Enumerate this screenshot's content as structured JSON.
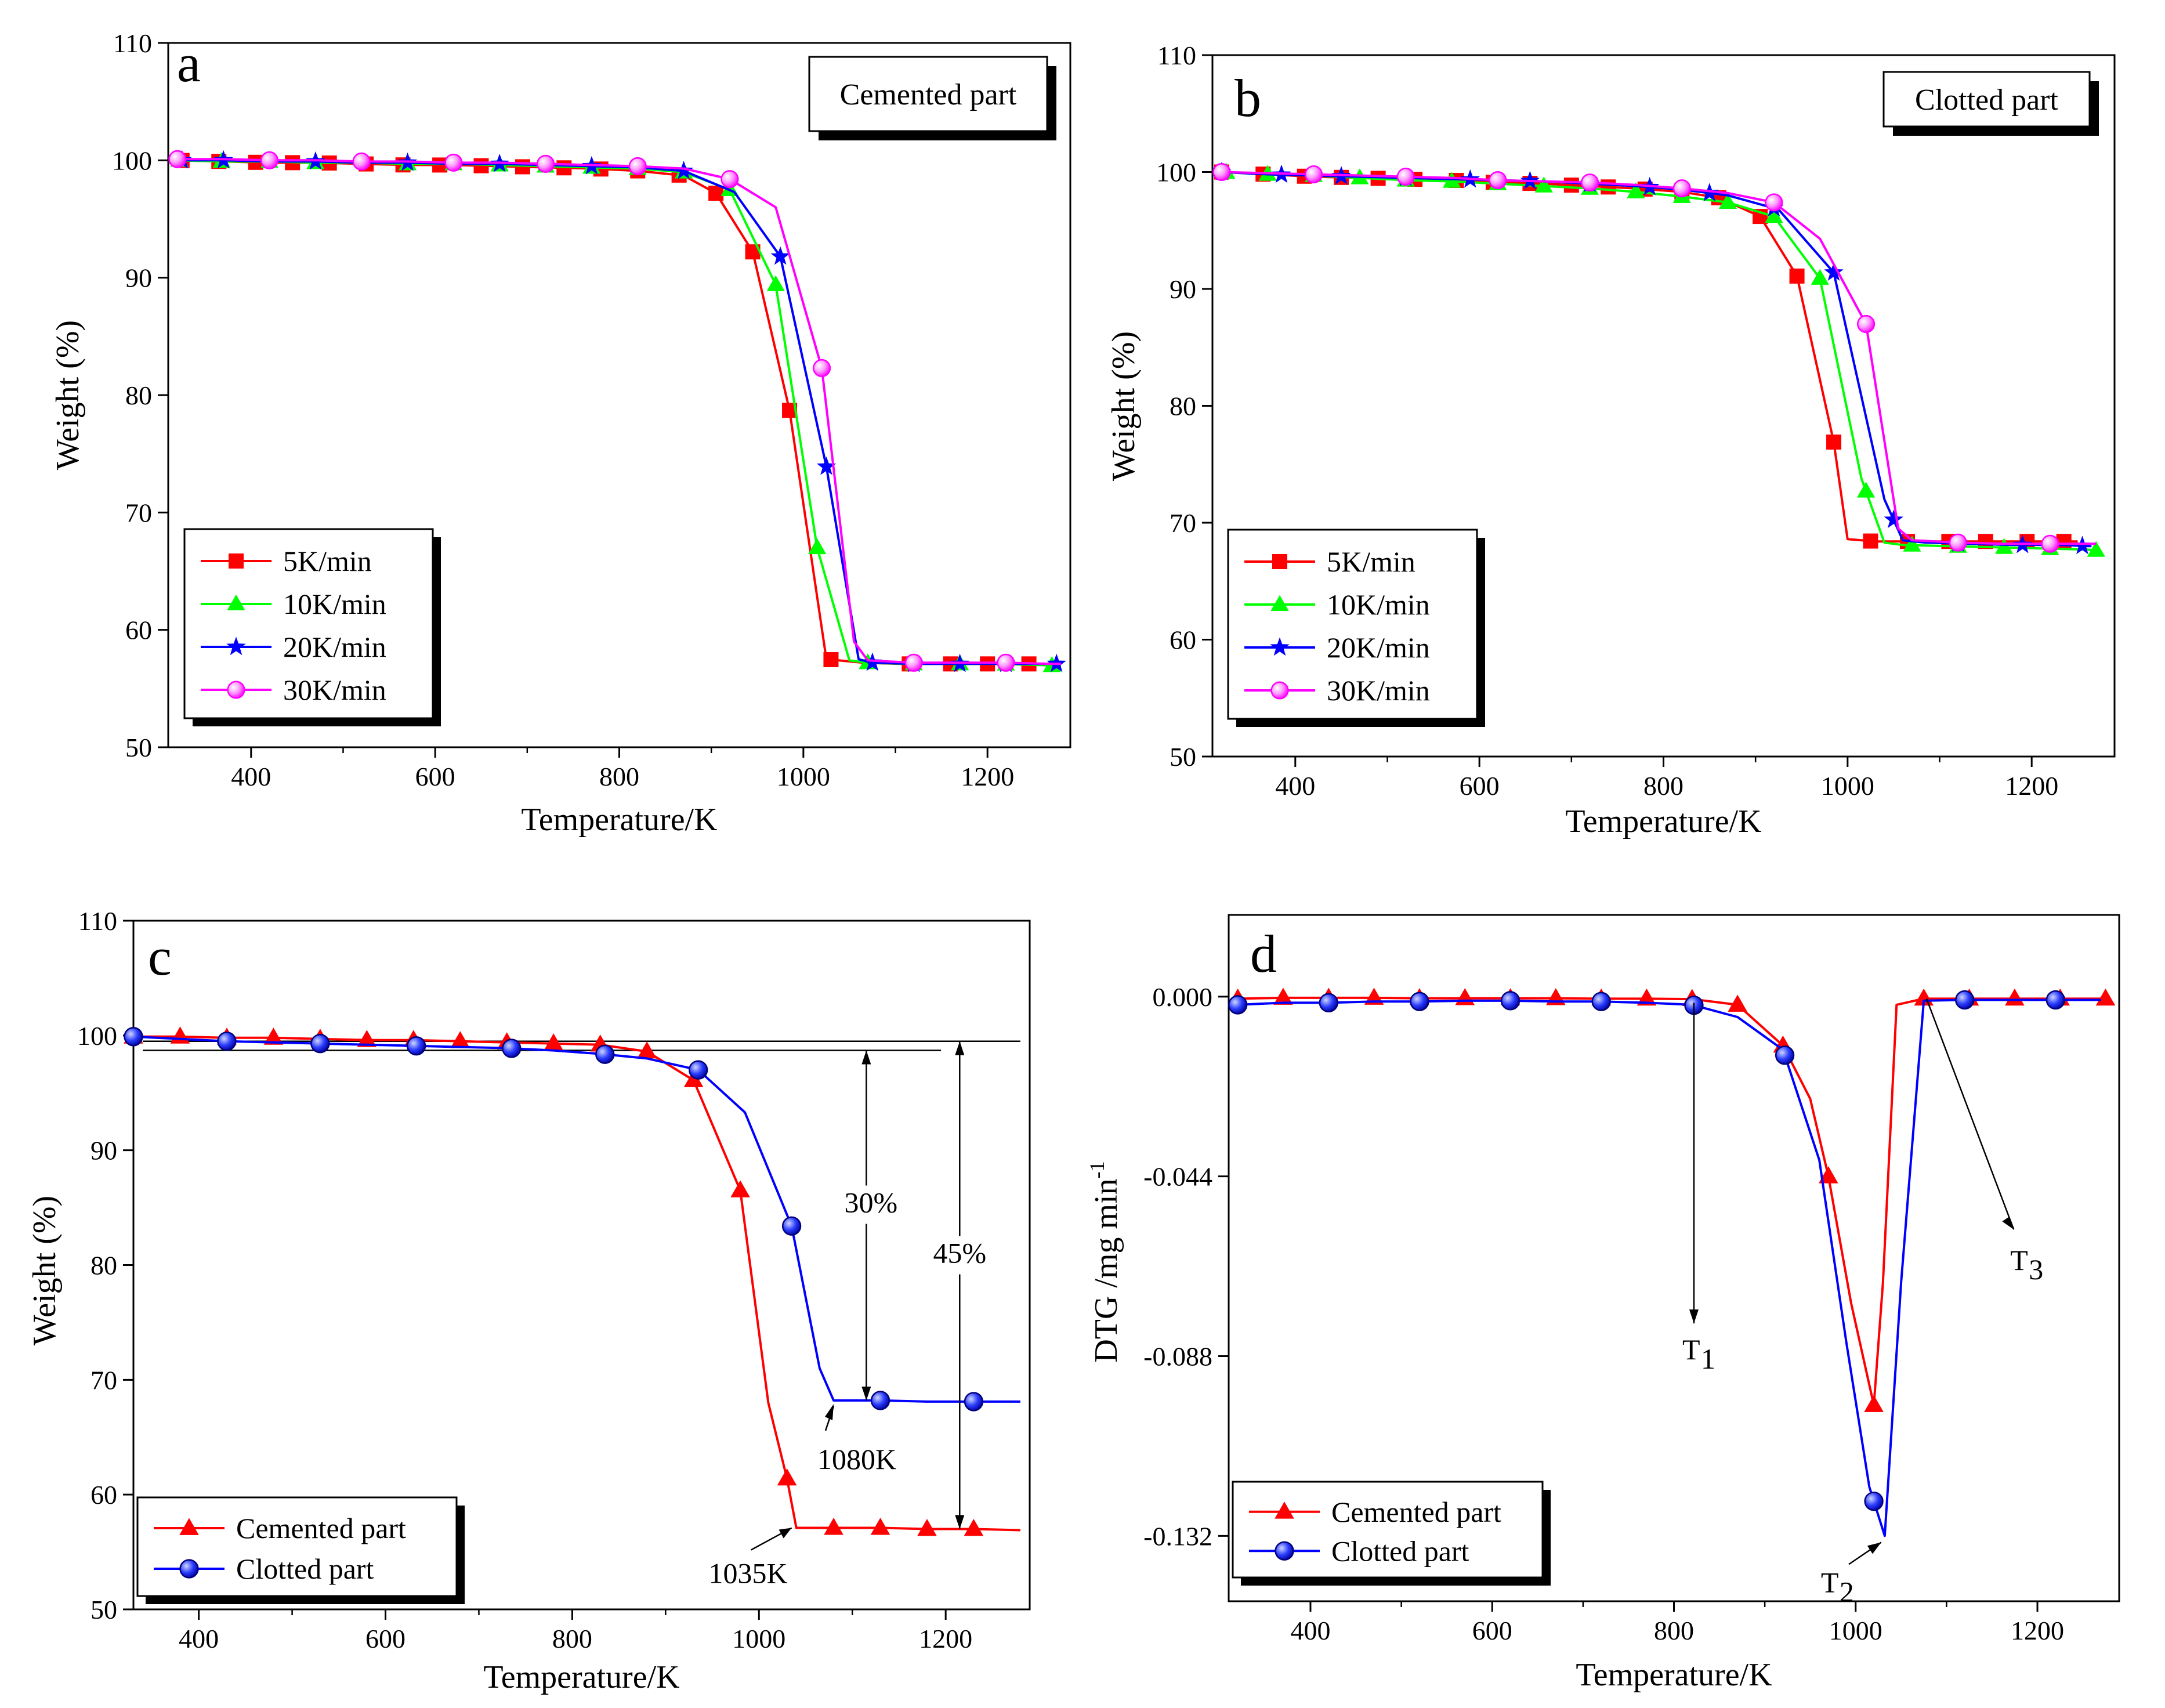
{
  "figure": {
    "colors": {
      "red": "#ff0000",
      "green": "#00ff00",
      "blue": "#0000ff",
      "magenta": "#ff00ff",
      "black": "#000000"
    },
    "icons": {
      "square": "square-marker-icon",
      "triangle": "triangle-marker-icon",
      "star": "star-marker-icon",
      "circle": "circle-marker-icon"
    }
  },
  "chart_data": [
    {
      "panel": "a",
      "type": "line",
      "title": "",
      "box_label": "Cemented part",
      "xlabel": "Temperature/K",
      "ylabel": "Weight  (%)",
      "xlim": [
        310,
        1290
      ],
      "ylim": [
        50,
        110
      ],
      "xticks": [
        400,
        600,
        800,
        1000,
        1200
      ],
      "yticks": [
        50,
        60,
        70,
        80,
        90,
        100,
        110
      ],
      "legend_position": "bottom-left",
      "series": [
        {
          "name": "5K/min",
          "color": "#ff0000",
          "marker": "square",
          "x": [
            320,
            370,
            420,
            470,
            520,
            570,
            620,
            670,
            720,
            770,
            820,
            870,
            905,
            945,
            985,
            1025,
            1065,
            1105,
            1155,
            1205,
            1255,
            1280
          ],
          "y": [
            100,
            99.9,
            99.8,
            99.8,
            99.7,
            99.6,
            99.6,
            99.5,
            99.4,
            99.3,
            99.1,
            98.7,
            97.2,
            92.2,
            78.7,
            57.5,
            57.2,
            57.1,
            57.1,
            57.1,
            57.1,
            57.1
          ],
          "markers_x": [
            325,
            365,
            405,
            445,
            485,
            525,
            565,
            605,
            650,
            695,
            740,
            780,
            820,
            865,
            905,
            945,
            985,
            1030,
            1115,
            1160,
            1200,
            1245
          ]
        },
        {
          "name": "10K/min",
          "color": "#00ff00",
          "marker": "triangle",
          "x": [
            320,
            370,
            420,
            470,
            520,
            570,
            620,
            670,
            720,
            770,
            820,
            870,
            920,
            970,
            1015,
            1050,
            1070,
            1110,
            1160,
            1210,
            1260,
            1280
          ],
          "y": [
            100,
            99.9,
            99.9,
            99.8,
            99.8,
            99.7,
            99.7,
            99.6,
            99.5,
            99.4,
            99.3,
            99,
            97.5,
            89.4,
            67,
            57.4,
            57.2,
            57.1,
            57.1,
            57.1,
            57,
            56.9
          ],
          "markers_x": [
            322,
            368,
            420,
            470,
            570,
            620,
            670,
            720,
            770,
            820,
            870,
            920,
            970,
            1015,
            1070,
            1120,
            1170,
            1220,
            1270
          ]
        },
        {
          "name": "20K/min",
          "color": "#0000ff",
          "marker": "star",
          "x": [
            320,
            370,
            420,
            470,
            520,
            570,
            620,
            670,
            720,
            770,
            820,
            870,
            925,
            975,
            1025,
            1060,
            1075,
            1120,
            1170,
            1220,
            1270,
            1280
          ],
          "y": [
            100,
            100,
            99.9,
            99.9,
            99.8,
            99.8,
            99.7,
            99.7,
            99.6,
            99.5,
            99.4,
            99.1,
            97.3,
            91.8,
            73.9,
            57.5,
            57.2,
            57.1,
            57.1,
            57.1,
            57.1,
            57.1
          ],
          "markers_x": [
            325,
            370,
            470,
            570,
            670,
            770,
            870,
            975,
            1025,
            1075,
            1120,
            1170,
            1220,
            1275
          ]
        },
        {
          "name": "30K/min",
          "color": "#ff00ff",
          "marker": "circle",
          "x": [
            320,
            370,
            420,
            470,
            520,
            570,
            620,
            670,
            720,
            770,
            820,
            870,
            920,
            970,
            1020,
            1055,
            1070,
            1120,
            1170,
            1220,
            1270,
            1280
          ],
          "y": [
            100.1,
            100.1,
            100,
            100,
            99.9,
            99.9,
            99.8,
            99.8,
            99.7,
            99.6,
            99.5,
            99.3,
            98.4,
            96,
            82.3,
            59,
            57.4,
            57.2,
            57.2,
            57.2,
            57.1,
            57.1
          ],
          "markers_x": [
            320,
            420,
            520,
            620,
            720,
            820,
            920,
            1020,
            1120,
            1220
          ]
        }
      ]
    },
    {
      "panel": "b",
      "type": "line",
      "title": "",
      "box_label": "Clotted part",
      "xlabel": "Temperature/K",
      "ylabel": "Weight  (%)",
      "xlim": [
        310,
        1290
      ],
      "ylim": [
        50,
        110
      ],
      "xticks": [
        400,
        600,
        800,
        1000,
        1200
      ],
      "yticks": [
        50,
        60,
        70,
        80,
        90,
        100,
        110
      ],
      "legend_position": "bottom-left",
      "series": [
        {
          "name": "5K/min",
          "color": "#ff0000",
          "marker": "square",
          "x": [
            320,
            370,
            420,
            470,
            520,
            570,
            620,
            670,
            720,
            770,
            820,
            860,
            905,
            945,
            985,
            1000,
            1030,
            1080,
            1130,
            1180,
            1230,
            1250
          ],
          "y": [
            100,
            99.8,
            99.6,
            99.5,
            99.4,
            99.3,
            99.1,
            99,
            98.8,
            98.6,
            98.3,
            97.8,
            96.2,
            91.1,
            76.9,
            68.6,
            68.4,
            68.4,
            68.4,
            68.4,
            68.4,
            68.4
          ],
          "markers_x": [
            320,
            365,
            410,
            450,
            490,
            530,
            575,
            615,
            655,
            700,
            740,
            780,
            820,
            860,
            905,
            945,
            985,
            1025,
            1065,
            1110,
            1150,
            1195,
            1235
          ]
        },
        {
          "name": "10K/min",
          "color": "#00ff00",
          "marker": "triangle",
          "x": [
            320,
            370,
            420,
            470,
            520,
            570,
            620,
            670,
            720,
            770,
            820,
            870,
            920,
            970,
            1015,
            1040,
            1060,
            1110,
            1160,
            1210,
            1260,
            1275
          ],
          "y": [
            100,
            99.8,
            99.7,
            99.5,
            99.3,
            99.2,
            99,
            98.8,
            98.6,
            98.3,
            97.9,
            97.4,
            96.2,
            90.9,
            73.8,
            68.3,
            68.1,
            68,
            67.9,
            67.8,
            67.7,
            67.6
          ],
          "markers_x": [
            325,
            370,
            420,
            470,
            520,
            570,
            620,
            670,
            720,
            770,
            820,
            870,
            920,
            970,
            1020,
            1070,
            1120,
            1170,
            1220,
            1270
          ]
        },
        {
          "name": "20K/min",
          "color": "#0000ff",
          "marker": "star",
          "x": [
            320,
            370,
            420,
            470,
            520,
            570,
            620,
            670,
            720,
            770,
            820,
            870,
            925,
            985,
            1040,
            1060,
            1085,
            1130,
            1180,
            1230,
            1260,
            1265
          ],
          "y": [
            100,
            99.8,
            99.7,
            99.6,
            99.5,
            99.4,
            99.3,
            99.2,
            99,
            98.8,
            98.5,
            98,
            96.8,
            91.4,
            72,
            68.5,
            68.3,
            68.2,
            68.1,
            68.1,
            68,
            68
          ],
          "markers_x": [
            320,
            385,
            450,
            520,
            590,
            655,
            720,
            785,
            850,
            920,
            985,
            1050,
            1120,
            1190,
            1255
          ]
        },
        {
          "name": "30K/min",
          "color": "#ff00ff",
          "marker": "circle",
          "x": [
            320,
            370,
            420,
            470,
            520,
            570,
            620,
            670,
            720,
            770,
            820,
            870,
            920,
            970,
            1020,
            1055,
            1070,
            1120,
            1170,
            1220,
            1260,
            1270
          ],
          "y": [
            100,
            99.9,
            99.8,
            99.7,
            99.6,
            99.5,
            99.3,
            99.2,
            99.1,
            98.9,
            98.6,
            98.2,
            97.4,
            94.3,
            87,
            69.5,
            68.5,
            68.3,
            68.2,
            68.2,
            68.2,
            68.2
          ],
          "markers_x": [
            320,
            420,
            520,
            620,
            720,
            820,
            920,
            1020,
            1120,
            1220
          ]
        }
      ]
    },
    {
      "panel": "c",
      "type": "line",
      "title": "",
      "xlabel": "Temperature/K",
      "ylabel": "Weight  (%)",
      "xlim": [
        330,
        1290
      ],
      "ylim": [
        50,
        110
      ],
      "xticks": [
        400,
        600,
        800,
        1000,
        1200
      ],
      "yticks": [
        50,
        60,
        70,
        80,
        90,
        100,
        110
      ],
      "legend_position": "bottom-left",
      "series": [
        {
          "name": "Cemented part",
          "color": "#ff0000",
          "marker": "triangle",
          "x": [
            330,
            380,
            430,
            480,
            530,
            580,
            630,
            680,
            730,
            780,
            830,
            880,
            930,
            980,
            1010,
            1030,
            1040,
            1080,
            1130,
            1180,
            1230,
            1280
          ],
          "y": [
            99.9,
            99.9,
            99.8,
            99.8,
            99.7,
            99.6,
            99.6,
            99.5,
            99.4,
            99.3,
            99.2,
            98.6,
            96.1,
            86.5,
            68,
            61.4,
            57.1,
            57.1,
            57.1,
            57,
            57,
            56.9
          ],
          "markers_x": [
            330,
            380,
            430,
            480,
            530,
            580,
            630,
            680,
            730,
            780,
            830,
            880,
            930,
            980,
            1030,
            1080,
            1130,
            1180,
            1230
          ]
        },
        {
          "name": "Clotted part",
          "color": "#0000ff",
          "marker": "circle",
          "x": [
            330,
            380,
            430,
            480,
            530,
            580,
            630,
            680,
            730,
            780,
            830,
            880,
            935,
            985,
            1035,
            1065,
            1080,
            1130,
            1180,
            1230,
            1280
          ],
          "y": [
            99.9,
            99.7,
            99.5,
            99.4,
            99.3,
            99.2,
            99.1,
            99,
            98.9,
            98.7,
            98.4,
            98,
            97,
            93.3,
            83.4,
            71,
            68.2,
            68.2,
            68.1,
            68.1,
            68.1
          ],
          "markers_x": [
            330,
            430,
            530,
            633,
            735,
            835,
            935,
            1035,
            1130,
            1230
          ]
        }
      ],
      "annotations": [
        {
          "label": "30%",
          "x": 1115,
          "from": 98.7,
          "to": 68.2
        },
        {
          "label": "45%",
          "x": 1215,
          "from": 99.5,
          "to": 57.0
        },
        {
          "label": "1080K",
          "x": 1080,
          "y": 68.2
        },
        {
          "label": "1035K",
          "x": 1035,
          "y": 57.1
        }
      ]
    },
    {
      "panel": "d",
      "type": "line",
      "title": "",
      "xlabel": "Temperature/K",
      "ylabel": "DTG /mg min",
      "ylabel_superscript": "-1",
      "xlim": [
        310,
        1290
      ],
      "ylim": [
        -0.148,
        0.02
      ],
      "xticks": [
        400,
        600,
        800,
        1000,
        1200
      ],
      "yticks": [
        0.0,
        -0.044,
        -0.088,
        -0.132
      ],
      "ytick_labels": [
        "0.000",
        "-0.044",
        "-0.088",
        "-0.132"
      ],
      "legend_position": "bottom-left",
      "series": [
        {
          "name": "Cemented part",
          "color": "#ff0000",
          "marker": "triangle",
          "x": [
            320,
            370,
            420,
            470,
            520,
            570,
            620,
            670,
            720,
            770,
            820,
            870,
            920,
            950,
            970,
            995,
            1020,
            1030,
            1045,
            1075,
            1120,
            1175,
            1225,
            1275
          ],
          "y": [
            -0.0005,
            -0.0003,
            -0.0003,
            -0.0003,
            -0.0004,
            -0.0004,
            -0.0004,
            -0.0004,
            -0.0005,
            -0.0005,
            -0.0006,
            -0.002,
            -0.012,
            -0.025,
            -0.044,
            -0.075,
            -0.1,
            -0.07,
            -0.002,
            -0.0005,
            -0.0005,
            -0.0005,
            -0.0005,
            -0.0005
          ],
          "markers_x": [
            320,
            370,
            420,
            470,
            520,
            570,
            620,
            670,
            720,
            770,
            820,
            870,
            920,
            970,
            1020,
            1075,
            1125,
            1175,
            1225,
            1275
          ]
        },
        {
          "name": "Clotted part",
          "color": "#0000ff",
          "marker": "circle",
          "x": [
            320,
            370,
            420,
            470,
            520,
            570,
            620,
            670,
            720,
            770,
            820,
            870,
            920,
            960,
            990,
            1015,
            1032,
            1050,
            1075,
            1120,
            1170,
            1220,
            1270
          ],
          "y": [
            -0.002,
            -0.0015,
            -0.0015,
            -0.0012,
            -0.0012,
            -0.001,
            -0.001,
            -0.0012,
            -0.0012,
            -0.0015,
            -0.002,
            -0.005,
            -0.013,
            -0.04,
            -0.085,
            -0.12,
            -0.132,
            -0.07,
            -0.001,
            -0.0008,
            -0.0008,
            -0.0008,
            -0.0008
          ],
          "markers_x": [
            320,
            420,
            520,
            620,
            720,
            822,
            922,
            1020,
            1120,
            1220
          ]
        }
      ],
      "annotations": [
        {
          "label": "T",
          "sub": "1",
          "x": 822
        },
        {
          "label": "T",
          "sub": "2",
          "x": 1032
        },
        {
          "label": "T",
          "sub": "3",
          "x": 1078
        }
      ]
    }
  ]
}
